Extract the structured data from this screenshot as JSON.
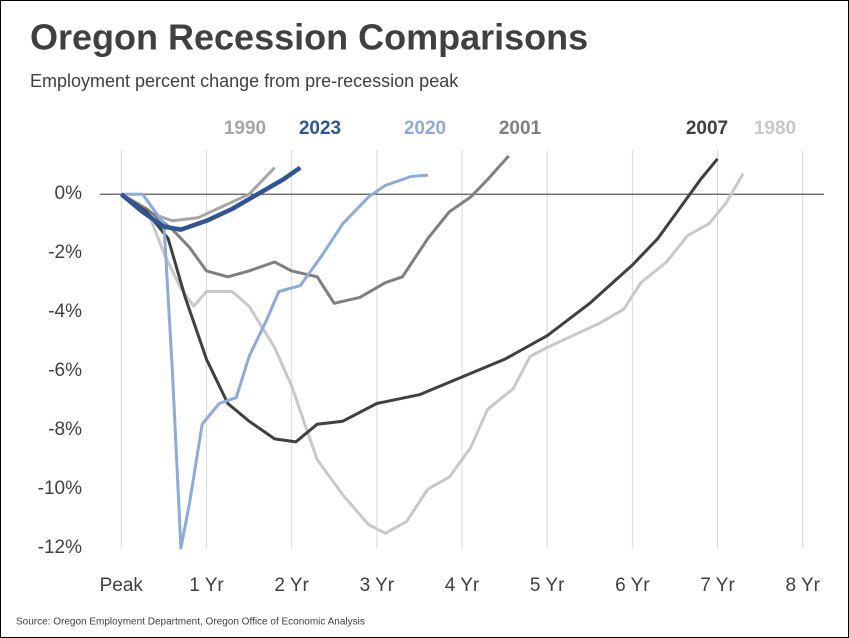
{
  "chart_data": {
    "type": "line",
    "title": "Oregon Recession Comparisons",
    "subtitle": "Employment percent change from pre-recession peak",
    "source": "Source: Oregon Employment Department, Oregon Office of Economic Analysis",
    "xlim": [
      -0.25,
      8.25
    ],
    "ylim": [
      -12,
      1.5
    ],
    "xticks": [
      {
        "value": 0,
        "label": "Peak"
      },
      {
        "value": 1,
        "label": "1 Yr"
      },
      {
        "value": 2,
        "label": "2 Yr"
      },
      {
        "value": 3,
        "label": "3 Yr"
      },
      {
        "value": 4,
        "label": "4 Yr"
      },
      {
        "value": 5,
        "label": "5 Yr"
      },
      {
        "value": 6,
        "label": "6 Yr"
      },
      {
        "value": 7,
        "label": "7 Yr"
      },
      {
        "value": 8,
        "label": "8 Yr"
      }
    ],
    "yticks": [
      {
        "value": 0,
        "label": "0%"
      },
      {
        "value": -2,
        "label": "-2%"
      },
      {
        "value": -4,
        "label": "-4%"
      },
      {
        "value": -6,
        "label": "-6%"
      },
      {
        "value": -8,
        "label": "-8%"
      },
      {
        "value": -10,
        "label": "-10%"
      },
      {
        "value": -12,
        "label": "-12%"
      }
    ],
    "grid": true,
    "series": [
      {
        "name": "1980",
        "color": "#c8c8c8",
        "x": [
          0,
          0.3,
          0.5,
          0.7,
          0.85,
          1.0,
          1.3,
          1.5,
          1.8,
          2.0,
          2.3,
          2.6,
          2.9,
          3.1,
          3.35,
          3.6,
          3.85,
          4.1,
          4.3,
          4.6,
          4.8,
          5.0,
          5.3,
          5.6,
          5.9,
          6.1,
          6.4,
          6.65,
          6.9,
          7.1,
          7.3
        ],
        "values": [
          0,
          -0.5,
          -2,
          -3.2,
          -3.8,
          -3.3,
          -3.3,
          -3.8,
          -5.2,
          -6.5,
          -9.0,
          -10.2,
          -11.2,
          -11.5,
          -11.1,
          -10.0,
          -9.6,
          -8.6,
          -7.3,
          -6.6,
          -5.5,
          -5.2,
          -4.8,
          -4.4,
          -3.9,
          -3.0,
          -2.3,
          -1.4,
          -1.0,
          -0.3,
          0.7
        ]
      },
      {
        "name": "1990",
        "color": "#a6a6a6",
        "x": [
          0,
          0.3,
          0.6,
          0.9,
          1.2,
          1.5,
          1.8
        ],
        "values": [
          0,
          -0.6,
          -0.9,
          -0.8,
          -0.4,
          0,
          0.9
        ]
      },
      {
        "name": "2001",
        "color": "#7f7f7f",
        "x": [
          0,
          0.3,
          0.6,
          0.8,
          1.0,
          1.25,
          1.5,
          1.8,
          2.0,
          2.3,
          2.5,
          2.8,
          3.1,
          3.3,
          3.6,
          3.85,
          4.1,
          4.3,
          4.55
        ],
        "values": [
          0,
          -0.5,
          -1.2,
          -1.8,
          -2.6,
          -2.8,
          -2.6,
          -2.3,
          -2.6,
          -2.8,
          -3.7,
          -3.5,
          -3.0,
          -2.8,
          -1.5,
          -0.6,
          -0.1,
          0.5,
          1.3
        ]
      },
      {
        "name": "2007",
        "color": "#404040",
        "x": [
          0,
          0.3,
          0.55,
          0.75,
          1.0,
          1.25,
          1.5,
          1.8,
          2.05,
          2.3,
          2.6,
          3.0,
          3.5,
          4.0,
          4.5,
          5.0,
          5.5,
          6.0,
          6.3,
          6.55,
          6.8,
          7.0
        ],
        "values": [
          0,
          -0.6,
          -1.5,
          -3.5,
          -5.6,
          -7.1,
          -7.7,
          -8.3,
          -8.4,
          -7.8,
          -7.7,
          -7.1,
          -6.8,
          -6.2,
          -5.6,
          -4.8,
          -3.7,
          -2.4,
          -1.5,
          -0.5,
          0.5,
          1.2
        ]
      },
      {
        "name": "2020",
        "color": "#8eaadb",
        "x": [
          0,
          0.25,
          0.5,
          0.6,
          0.7,
          0.8,
          0.95,
          1.15,
          1.35,
          1.5,
          1.7,
          1.85,
          2.1,
          2.35,
          2.6,
          2.9,
          3.1,
          3.4,
          3.6
        ],
        "values": [
          0,
          0,
          -1,
          -6,
          -12,
          -10.5,
          -7.8,
          -7.1,
          -6.9,
          -5.5,
          -4.3,
          -3.3,
          -3.1,
          -2.1,
          -1.0,
          -0.1,
          0.3,
          0.6,
          0.65
        ]
      },
      {
        "name": "2023",
        "color": "#2f5597",
        "x": [
          0,
          0.25,
          0.5,
          0.7,
          1.0,
          1.3,
          1.6,
          1.9,
          2.1
        ],
        "values": [
          0,
          -0.6,
          -1.1,
          -1.2,
          -0.9,
          -0.5,
          0,
          0.5,
          0.9
        ]
      }
    ]
  }
}
